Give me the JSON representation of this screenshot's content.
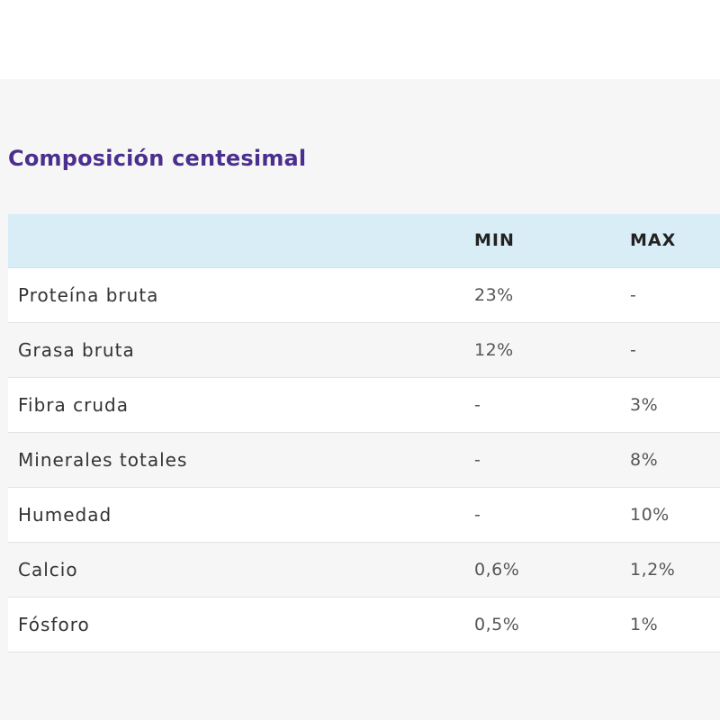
{
  "section": {
    "title": "Composición centesimal"
  },
  "table": {
    "headers": [
      "",
      "MIN",
      "MAX"
    ],
    "rows": [
      {
        "name": "Proteína bruta",
        "min": "23%",
        "max": "-"
      },
      {
        "name": "Grasa bruta",
        "min": "12%",
        "max": "-"
      },
      {
        "name": "Fibra cruda",
        "min": "-",
        "max": "3%"
      },
      {
        "name": "Minerales totales",
        "min": "-",
        "max": "8%"
      },
      {
        "name": "Humedad",
        "min": "-",
        "max": "10%"
      },
      {
        "name": "Calcio",
        "min": "0,6%",
        "max": "1,2%"
      },
      {
        "name": "Fósforo",
        "min": "0,5%",
        "max": "1%"
      }
    ]
  },
  "colors": {
    "title": "#4b2f8f",
    "header_bg": "#d9edf7",
    "page_bg": "#f6f6f6"
  }
}
